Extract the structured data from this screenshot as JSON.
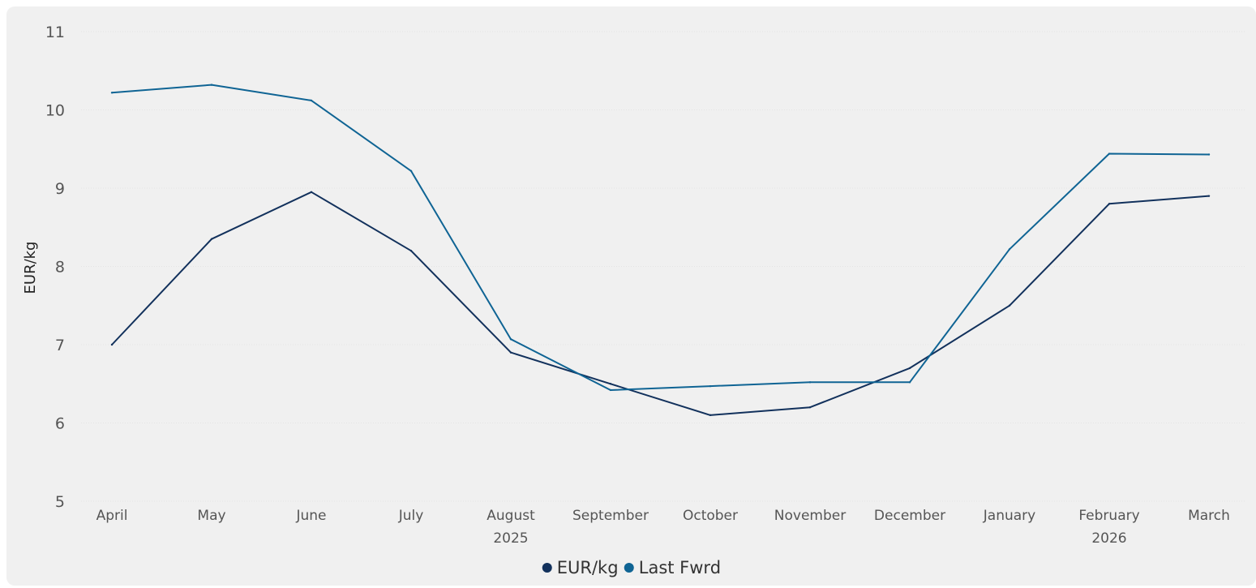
{
  "chart_data": {
    "type": "line",
    "categories": [
      "April",
      "May",
      "June",
      "July",
      "August",
      "September",
      "October",
      "November",
      "December",
      "January",
      "February",
      "March"
    ],
    "year_labels": {
      "August": "2025",
      "February": "2026"
    },
    "ylabel": "EUR/kg",
    "ylim": [
      5,
      11
    ],
    "yticks": [
      5,
      6,
      7,
      8,
      9,
      10,
      11
    ],
    "grid": true,
    "legend_position": "bottom-center",
    "series": [
      {
        "name": "EUR/kg",
        "color": "#12315c",
        "values": [
          7.0,
          8.35,
          8.95,
          8.2,
          6.9,
          6.5,
          6.1,
          6.2,
          6.7,
          7.5,
          8.8,
          8.9
        ]
      },
      {
        "name": "Last Fwrd",
        "color": "#0f6494",
        "values": [
          10.22,
          10.32,
          10.12,
          9.22,
          7.07,
          6.42,
          6.47,
          6.52,
          6.52,
          8.22,
          9.44,
          9.43
        ]
      }
    ]
  }
}
